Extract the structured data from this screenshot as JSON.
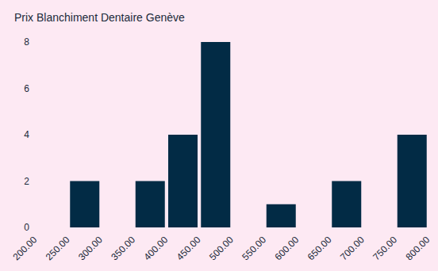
{
  "chart_data": {
    "type": "histogram",
    "title": "Prix Blanchiment Dentaire Genève",
    "bins": [
      200,
      250,
      300,
      350,
      400,
      450,
      500,
      550,
      600,
      650,
      700,
      750,
      800
    ],
    "values": [
      0,
      2,
      0,
      2,
      4,
      8,
      0,
      1,
      0,
      2,
      0,
      4
    ],
    "color": "#022b45",
    "xlim": [
      200,
      800
    ],
    "xticks": [
      {
        "value": 200,
        "label": "200.00"
      },
      {
        "value": 250,
        "label": "250.00"
      },
      {
        "value": 300,
        "label": "300.00"
      },
      {
        "value": 350,
        "label": "350.00"
      },
      {
        "value": 400,
        "label": "400.00"
      },
      {
        "value": 450,
        "label": "450.00"
      },
      {
        "value": 500,
        "label": "500.00"
      },
      {
        "value": 550,
        "label": "550.00"
      },
      {
        "value": 600,
        "label": "600.00"
      },
      {
        "value": 650,
        "label": "650.00"
      },
      {
        "value": 700,
        "label": "700.00"
      },
      {
        "value": 750,
        "label": "750.00"
      },
      {
        "value": 800,
        "label": "800.00"
      }
    ],
    "ylim": [
      0,
      8
    ],
    "yticks": [
      0,
      2,
      4,
      6,
      8
    ],
    "grid": false
  }
}
